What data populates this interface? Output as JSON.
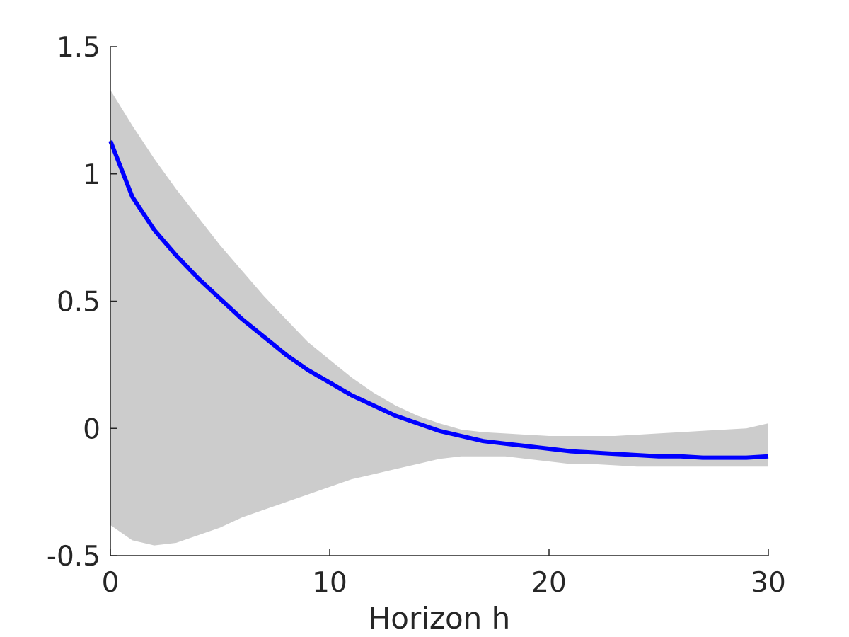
{
  "chart_data": {
    "type": "line",
    "title": "",
    "xlabel": "Horizon h",
    "ylabel": "",
    "xlim": [
      0,
      30
    ],
    "ylim": [
      -0.5,
      1.5
    ],
    "xticks": [
      0,
      10,
      20,
      30
    ],
    "xtick_labels": [
      "0",
      "10",
      "20",
      "30"
    ],
    "yticks": [
      -0.5,
      0,
      0.5,
      1,
      1.5
    ],
    "ytick_labels": [
      "-0.5",
      "0",
      "0.5",
      "1",
      "1.5"
    ],
    "grid": false,
    "colors": {
      "line": "#0000ff",
      "band": "#cccccc",
      "axis": "#262626"
    },
    "x": [
      0,
      1,
      2,
      3,
      4,
      5,
      6,
      7,
      8,
      9,
      10,
      11,
      12,
      13,
      14,
      15,
      16,
      17,
      18,
      19,
      20,
      21,
      22,
      23,
      24,
      25,
      26,
      27,
      28,
      29,
      30
    ],
    "series": [
      {
        "values": [
          1.13,
          0.91,
          0.78,
          0.68,
          0.59,
          0.51,
          0.43,
          0.36,
          0.29,
          0.23,
          0.18,
          0.13,
          0.09,
          0.05,
          0.02,
          -0.01,
          -0.03,
          -0.05,
          -0.06,
          -0.07,
          -0.08,
          -0.09,
          -0.095,
          -0.1,
          -0.105,
          -0.11,
          -0.11,
          -0.115,
          -0.115,
          -0.115,
          -0.11
        ]
      }
    ],
    "band": {
      "upper": [
        1.33,
        1.19,
        1.06,
        0.94,
        0.83,
        0.72,
        0.62,
        0.52,
        0.43,
        0.34,
        0.27,
        0.2,
        0.14,
        0.09,
        0.05,
        0.02,
        -0.005,
        -0.015,
        -0.02,
        -0.025,
        -0.03,
        -0.03,
        -0.03,
        -0.03,
        -0.025,
        -0.02,
        -0.015,
        -0.01,
        -0.005,
        0,
        0.02
      ],
      "lower": [
        -0.38,
        -0.44,
        -0.46,
        -0.45,
        -0.42,
        -0.39,
        -0.35,
        -0.32,
        -0.29,
        -0.26,
        -0.23,
        -0.2,
        -0.18,
        -0.16,
        -0.14,
        -0.12,
        -0.11,
        -0.11,
        -0.11,
        -0.12,
        -0.13,
        -0.14,
        -0.14,
        -0.145,
        -0.15,
        -0.15,
        -0.15,
        -0.15,
        -0.15,
        -0.15,
        -0.15
      ]
    }
  }
}
